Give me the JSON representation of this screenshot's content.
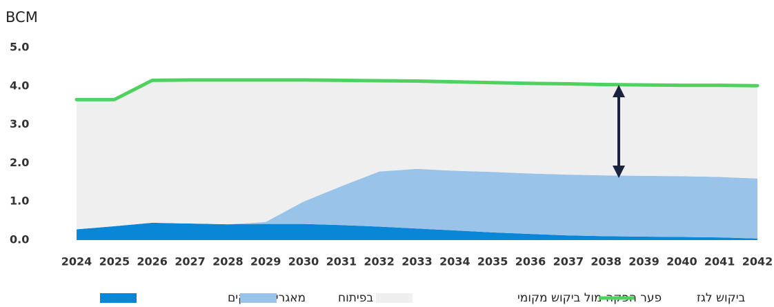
{
  "chart_data": {
    "type": "stacked_area_line",
    "y_label": "BCM",
    "categories": [
      "2024",
      "2025",
      "2026",
      "2027",
      "2028",
      "2029",
      "2030",
      "2031",
      "2032",
      "2033",
      "2034",
      "2035",
      "2036",
      "2037",
      "2038",
      "2039",
      "2040",
      "2041",
      "2042"
    ],
    "series": [
      {
        "name": "מאגרים מפיקים",
        "color": "#0a86d6",
        "kind": "area",
        "values": [
          0.28,
          0.36,
          0.45,
          0.43,
          0.41,
          0.42,
          0.42,
          0.39,
          0.35,
          0.3,
          0.25,
          0.2,
          0.16,
          0.12,
          0.1,
          0.09,
          0.08,
          0.07,
          0.04
        ]
      },
      {
        "name": "בפיתוח",
        "color": "#9ac3e9",
        "kind": "area",
        "values": [
          0,
          0,
          0,
          0,
          0,
          0.05,
          0.58,
          1.01,
          1.43,
          1.55,
          1.55,
          1.57,
          1.57,
          1.58,
          1.58,
          1.58,
          1.58,
          1.57,
          1.56
        ]
      },
      {
        "name": "פער הפקה מול ביקוש מקומי",
        "color": "#efefef",
        "kind": "area",
        "values": [
          3.37,
          3.29,
          3.7,
          3.73,
          3.75,
          3.69,
          3.16,
          2.75,
          2.36,
          2.28,
          2.31,
          2.32,
          2.34,
          2.36,
          2.36,
          2.36,
          2.36,
          2.38,
          2.41
        ]
      },
      {
        "name": "ביקוש לגז",
        "color": "#4fd160",
        "kind": "line",
        "values": [
          3.65,
          3.65,
          4.15,
          4.16,
          4.16,
          4.16,
          4.16,
          4.15,
          4.14,
          4.13,
          4.11,
          4.09,
          4.07,
          4.06,
          4.04,
          4.03,
          4.02,
          4.02,
          4.01
        ]
      }
    ],
    "ylim": [
      0,
      5
    ],
    "yticks": [
      {
        "value": 0,
        "label": "0.0"
      },
      {
        "value": 1,
        "label": "1.0"
      },
      {
        "value": 2,
        "label": "2.0"
      },
      {
        "value": 3,
        "label": "3.0"
      },
      {
        "value": 4,
        "label": "4.0"
      },
      {
        "value": 5,
        "label": "5.0"
      }
    ]
  }
}
